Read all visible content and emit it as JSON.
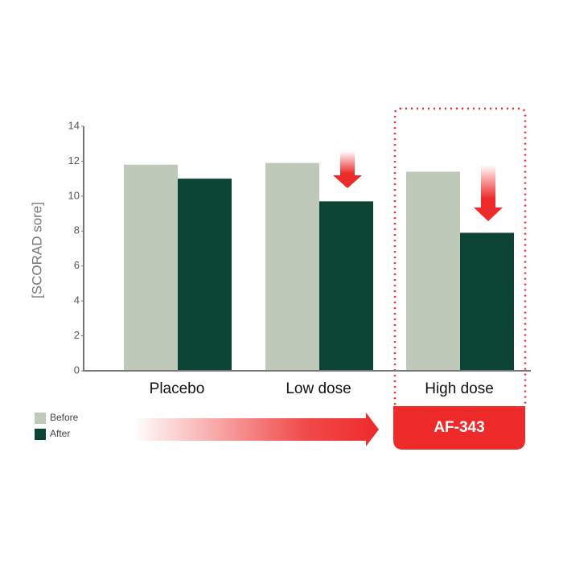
{
  "chart_data": {
    "type": "bar",
    "y_label": "[SCORAD sore]",
    "categories": [
      "Placebo",
      "Low dose",
      "High dose"
    ],
    "series": [
      {
        "name": "Before",
        "color": "#bec9b9",
        "values": [
          11.8,
          11.9,
          11.4
        ]
      },
      {
        "name": "After",
        "color": "#0c4434",
        "values": [
          11.0,
          9.7,
          7.9
        ]
      }
    ],
    "ylim": [
      0,
      14
    ],
    "yticks": [
      0,
      2,
      4,
      6,
      8,
      10,
      12,
      14
    ],
    "legend": "bottom-left",
    "annotation": "AF-343"
  }
}
